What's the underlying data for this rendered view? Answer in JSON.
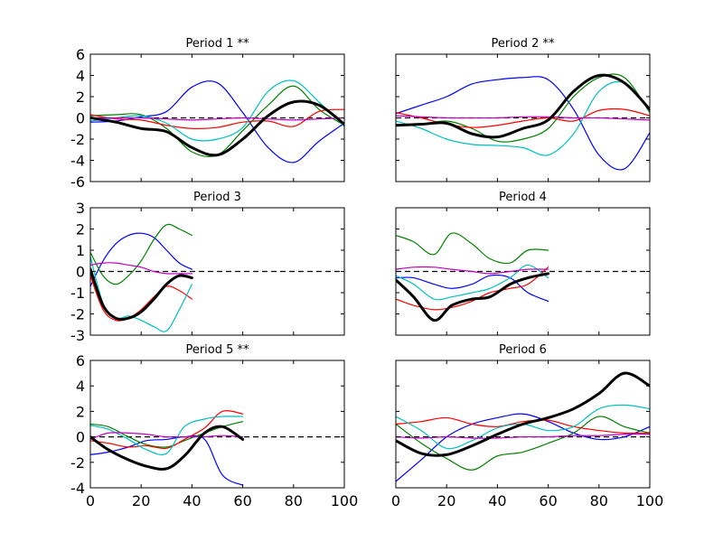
{
  "chart_data": [
    {
      "type": "line",
      "title": "Period 1 **",
      "xlim": [
        0,
        100
      ],
      "ylim": [
        -6,
        6
      ],
      "yticks": [
        -6,
        -4,
        -2,
        0,
        2,
        4,
        6
      ],
      "xticks": [
        0,
        20,
        40,
        60,
        80,
        100
      ],
      "show_xtick_labels": false,
      "show_ytick_labels": true,
      "zero_line": true,
      "series": [
        {
          "color": "#0000ff",
          "x": [
            0,
            10,
            20,
            30,
            40,
            50,
            60,
            70,
            80,
            90,
            100
          ],
          "y": [
            -0.4,
            -0.3,
            0.1,
            0.6,
            2.9,
            3.3,
            0.5,
            -2.8,
            -4.2,
            -2.2,
            -0.5
          ]
        },
        {
          "color": "#008000",
          "x": [
            0,
            10,
            20,
            30,
            40,
            50,
            60,
            70,
            80,
            90,
            100
          ],
          "y": [
            0.2,
            0.3,
            0.3,
            -1.0,
            -3.2,
            -3.5,
            -1.2,
            1.2,
            3.0,
            0.8,
            -0.7
          ]
        },
        {
          "color": "#ff0000",
          "x": [
            0,
            10,
            20,
            30,
            40,
            50,
            60,
            70,
            80,
            90,
            100
          ],
          "y": [
            0.3,
            -0.1,
            -0.2,
            -0.7,
            -1.0,
            -0.9,
            -0.4,
            -0.3,
            -0.8,
            0.6,
            0.8
          ]
        },
        {
          "color": "#00bfbf",
          "x": [
            0,
            10,
            20,
            30,
            40,
            50,
            60,
            70,
            80,
            90,
            100
          ],
          "y": [
            -0.3,
            0.0,
            0.2,
            -0.5,
            -2.0,
            -2.0,
            -0.9,
            2.5,
            3.5,
            1.5,
            -0.8
          ]
        },
        {
          "color": "#bf00bf",
          "x": [
            0,
            10,
            20,
            30,
            40,
            50,
            60,
            70,
            80,
            90,
            100
          ],
          "y": [
            0.0,
            0.0,
            0.0,
            -0.1,
            -0.2,
            -0.1,
            0.0,
            -0.1,
            -0.2,
            -0.1,
            0.0
          ]
        },
        {
          "color": "#000000",
          "mean": true,
          "x": [
            0,
            10,
            20,
            30,
            40,
            50,
            60,
            70,
            80,
            90,
            100
          ],
          "y": [
            0.0,
            -0.4,
            -1.0,
            -1.3,
            -2.8,
            -3.5,
            -2.0,
            0.2,
            1.5,
            1.2,
            -0.6
          ]
        }
      ]
    },
    {
      "type": "line",
      "title": "Period 2 **",
      "xlim": [
        0,
        100
      ],
      "ylim": [
        -6,
        6
      ],
      "yticks": [
        -6,
        -4,
        -2,
        0,
        2,
        4,
        6
      ],
      "xticks": [
        0,
        20,
        40,
        60,
        80,
        100
      ],
      "show_xtick_labels": false,
      "show_ytick_labels": false,
      "zero_line": true,
      "series": [
        {
          "color": "#0000ff",
          "x": [
            0,
            10,
            20,
            30,
            40,
            50,
            60,
            70,
            80,
            90,
            100
          ],
          "y": [
            0.4,
            1.2,
            2.0,
            3.2,
            3.6,
            3.8,
            3.6,
            0.8,
            -3.5,
            -4.8,
            -1.4
          ]
        },
        {
          "color": "#008000",
          "x": [
            0,
            10,
            20,
            30,
            40,
            50,
            60,
            70,
            80,
            90,
            100
          ],
          "y": [
            -0.7,
            -0.6,
            -0.3,
            -1.0,
            -2.2,
            -2.0,
            -1.0,
            2.0,
            3.8,
            3.8,
            0.5
          ]
        },
        {
          "color": "#ff0000",
          "x": [
            0,
            10,
            20,
            30,
            40,
            50,
            60,
            70,
            80,
            90,
            100
          ],
          "y": [
            0.5,
            0.0,
            -0.6,
            -0.9,
            -0.7,
            -0.3,
            0.0,
            -0.3,
            0.7,
            0.8,
            0.2
          ]
        },
        {
          "color": "#00bfbf",
          "x": [
            0,
            10,
            20,
            30,
            40,
            50,
            60,
            70,
            80,
            90,
            100
          ],
          "y": [
            -0.3,
            -1.0,
            -2.0,
            -2.5,
            -2.6,
            -2.8,
            -3.5,
            -1.5,
            2.5,
            3.3,
            0.8
          ]
        },
        {
          "color": "#bf00bf",
          "x": [
            0,
            10,
            20,
            30,
            40,
            50,
            60,
            70,
            80,
            90,
            100
          ],
          "y": [
            0.2,
            0.1,
            0.0,
            0.0,
            0.0,
            0.1,
            0.1,
            0.0,
            0.0,
            -0.1,
            -0.2
          ]
        },
        {
          "color": "#000000",
          "mean": true,
          "x": [
            0,
            10,
            20,
            30,
            40,
            50,
            60,
            70,
            80,
            90,
            100
          ],
          "y": [
            -0.7,
            -0.6,
            -0.5,
            -1.5,
            -1.8,
            -1.0,
            -0.2,
            2.5,
            4.0,
            3.3,
            0.8
          ]
        }
      ]
    },
    {
      "type": "line",
      "title": "Period 3",
      "xlim": [
        0,
        100
      ],
      "ylim": [
        -3,
        3
      ],
      "yticks": [
        -3,
        -2,
        -1,
        0,
        1,
        2,
        3
      ],
      "xticks": [
        0,
        20,
        40,
        60,
        80,
        100
      ],
      "show_xtick_labels": false,
      "show_ytick_labels": true,
      "zero_line": true,
      "series": [
        {
          "color": "#0000ff",
          "x": [
            0,
            5,
            10,
            15,
            20,
            25,
            30,
            35,
            40
          ],
          "y": [
            -0.7,
            0.5,
            1.3,
            1.7,
            1.8,
            1.6,
            1.0,
            0.4,
            0.1
          ]
        },
        {
          "color": "#008000",
          "x": [
            0,
            5,
            10,
            15,
            20,
            25,
            30,
            35,
            40
          ],
          "y": [
            0.9,
            -0.2,
            -0.6,
            -0.2,
            0.5,
            1.5,
            2.2,
            2.0,
            1.7
          ]
        },
        {
          "color": "#ff0000",
          "x": [
            0,
            5,
            10,
            15,
            20,
            25,
            30,
            35,
            40
          ],
          "y": [
            -0.2,
            -1.8,
            -2.3,
            -2.2,
            -1.8,
            -1.2,
            -0.7,
            -0.9,
            -1.3
          ]
        },
        {
          "color": "#00bfbf",
          "x": [
            0,
            5,
            10,
            15,
            20,
            25,
            30,
            35,
            40
          ],
          "y": [
            0.7,
            -1.5,
            -2.2,
            -2.1,
            -2.3,
            -2.6,
            -2.8,
            -1.8,
            -0.6
          ]
        },
        {
          "color": "#bf00bf",
          "x": [
            0,
            5,
            10,
            15,
            20,
            25,
            30,
            35,
            40
          ],
          "y": [
            0.3,
            0.4,
            0.4,
            0.3,
            0.2,
            0.0,
            -0.1,
            -0.1,
            -0.1
          ]
        },
        {
          "color": "#000000",
          "mean": true,
          "x": [
            0,
            5,
            10,
            15,
            20,
            25,
            30,
            35,
            40
          ],
          "y": [
            0.1,
            -1.6,
            -2.2,
            -2.2,
            -1.9,
            -1.3,
            -0.6,
            -0.2,
            -0.3
          ]
        }
      ]
    },
    {
      "type": "line",
      "title": "Period 4",
      "xlim": [
        0,
        100
      ],
      "ylim": [
        -3,
        3
      ],
      "yticks": [
        -3,
        -2,
        -1,
        0,
        1,
        2,
        3
      ],
      "xticks": [
        0,
        20,
        40,
        60,
        80,
        100
      ],
      "show_xtick_labels": false,
      "show_ytick_labels": false,
      "zero_line": true,
      "series": [
        {
          "color": "#0000ff",
          "x": [
            0,
            7,
            15,
            22,
            30,
            37,
            45,
            52,
            60
          ],
          "y": [
            -0.3,
            -0.3,
            -0.6,
            -0.8,
            -0.6,
            -0.2,
            -0.3,
            -1.0,
            -1.4
          ]
        },
        {
          "color": "#008000",
          "x": [
            0,
            7,
            15,
            22,
            30,
            37,
            45,
            52,
            60
          ],
          "y": [
            1.7,
            1.4,
            0.8,
            1.8,
            1.3,
            0.6,
            0.4,
            1.0,
            1.0
          ]
        },
        {
          "color": "#ff0000",
          "x": [
            0,
            7,
            15,
            22,
            30,
            37,
            45,
            52,
            60
          ],
          "y": [
            -1.3,
            -1.6,
            -1.8,
            -1.7,
            -1.4,
            -1.0,
            -0.8,
            -0.6,
            0.2
          ]
        },
        {
          "color": "#00bfbf",
          "x": [
            0,
            7,
            15,
            22,
            30,
            37,
            45,
            52,
            60
          ],
          "y": [
            -0.2,
            -0.6,
            -1.3,
            -1.2,
            -1.0,
            -0.8,
            -0.3,
            0.3,
            -0.3
          ]
        },
        {
          "color": "#bf00bf",
          "x": [
            0,
            7,
            15,
            22,
            30,
            37,
            45,
            52,
            60
          ],
          "y": [
            0.1,
            0.2,
            0.2,
            0.1,
            0.0,
            -0.1,
            0.0,
            0.1,
            0.1
          ]
        },
        {
          "color": "#000000",
          "mean": true,
          "x": [
            0,
            7,
            15,
            22,
            30,
            37,
            45,
            52,
            60
          ],
          "y": [
            -0.4,
            -1.2,
            -2.3,
            -1.6,
            -1.3,
            -1.2,
            -0.6,
            -0.3,
            -0.1
          ]
        }
      ]
    },
    {
      "type": "line",
      "title": "Period 5 **",
      "xlim": [
        0,
        100
      ],
      "ylim": [
        -4,
        6
      ],
      "yticks": [
        -4,
        -2,
        0,
        2,
        4,
        6
      ],
      "xticks": [
        0,
        20,
        40,
        60,
        80,
        100
      ],
      "show_xtick_labels": true,
      "show_ytick_labels": true,
      "zero_line": true,
      "series": [
        {
          "color": "#0000ff",
          "x": [
            0,
            7,
            15,
            22,
            30,
            37,
            45,
            52,
            60
          ],
          "y": [
            -1.4,
            -1.2,
            -0.8,
            -0.3,
            -0.2,
            0.0,
            -0.2,
            -3.0,
            -3.8
          ]
        },
        {
          "color": "#008000",
          "x": [
            0,
            7,
            15,
            22,
            30,
            37,
            45,
            52,
            60
          ],
          "y": [
            1.0,
            0.8,
            0.0,
            -0.6,
            -0.8,
            -0.3,
            0.3,
            0.8,
            1.2
          ]
        },
        {
          "color": "#ff0000",
          "x": [
            0,
            7,
            15,
            22,
            30,
            37,
            45,
            52,
            60
          ],
          "y": [
            -0.3,
            -0.5,
            -0.8,
            -0.7,
            -0.9,
            -0.2,
            0.7,
            2.0,
            1.8
          ]
        },
        {
          "color": "#00bfbf",
          "x": [
            0,
            7,
            15,
            22,
            30,
            37,
            45,
            52,
            60
          ],
          "y": [
            0.9,
            0.6,
            -0.2,
            -1.0,
            -1.3,
            0.8,
            1.4,
            1.6,
            1.6
          ]
        },
        {
          "color": "#bf00bf",
          "x": [
            0,
            7,
            15,
            22,
            30,
            37,
            45,
            52,
            60
          ],
          "y": [
            -0.2,
            0.3,
            0.3,
            0.2,
            0.0,
            0.0,
            0.0,
            0.1,
            0.0
          ]
        },
        {
          "color": "#000000",
          "mean": true,
          "x": [
            0,
            7,
            15,
            22,
            30,
            37,
            45,
            52,
            60
          ],
          "y": [
            0.0,
            -1.0,
            -1.8,
            -2.3,
            -2.5,
            -1.5,
            0.3,
            0.8,
            -0.2
          ]
        }
      ]
    },
    {
      "type": "line",
      "title": "Period 6",
      "xlim": [
        0,
        100
      ],
      "ylim": [
        -4,
        6
      ],
      "yticks": [
        -4,
        -2,
        0,
        2,
        4,
        6
      ],
      "xticks": [
        0,
        20,
        40,
        60,
        80,
        100
      ],
      "show_xtick_labels": true,
      "show_ytick_labels": false,
      "zero_line": true,
      "series": [
        {
          "color": "#0000ff",
          "x": [
            0,
            10,
            20,
            30,
            40,
            50,
            60,
            70,
            80,
            90,
            100
          ],
          "y": [
            -3.5,
            -1.8,
            0.0,
            1.0,
            1.5,
            1.8,
            1.2,
            0.3,
            -0.2,
            0.0,
            0.8
          ]
        },
        {
          "color": "#008000",
          "x": [
            0,
            10,
            20,
            30,
            40,
            50,
            60,
            70,
            80,
            90,
            100
          ],
          "y": [
            1.0,
            -0.5,
            -1.7,
            -2.6,
            -1.5,
            -1.2,
            -0.5,
            0.3,
            1.6,
            0.8,
            0.3
          ]
        },
        {
          "color": "#ff0000",
          "x": [
            0,
            10,
            20,
            30,
            40,
            50,
            60,
            70,
            80,
            90,
            100
          ],
          "y": [
            1.0,
            1.2,
            1.5,
            1.0,
            0.8,
            1.2,
            1.3,
            0.8,
            0.5,
            0.3,
            0.3
          ]
        },
        {
          "color": "#00bfbf",
          "x": [
            0,
            10,
            20,
            30,
            40,
            50,
            60,
            70,
            80,
            90,
            100
          ],
          "y": [
            1.6,
            0.5,
            -0.9,
            -0.3,
            0.7,
            1.0,
            0.5,
            0.8,
            2.2,
            2.5,
            2.2
          ]
        },
        {
          "color": "#bf00bf",
          "x": [
            0,
            10,
            20,
            30,
            40,
            50,
            60,
            70,
            80,
            90,
            100
          ],
          "y": [
            0.0,
            -0.1,
            0.0,
            -0.1,
            -0.1,
            0.0,
            0.0,
            0.1,
            0.1,
            0.2,
            0.2
          ]
        },
        {
          "color": "#000000",
          "mean": true,
          "x": [
            0,
            10,
            20,
            30,
            40,
            50,
            60,
            70,
            80,
            90,
            100
          ],
          "y": [
            -0.3,
            -1.3,
            -1.4,
            -0.7,
            0.2,
            1.0,
            1.5,
            2.2,
            3.4,
            5.0,
            4.0
          ]
        }
      ]
    }
  ]
}
